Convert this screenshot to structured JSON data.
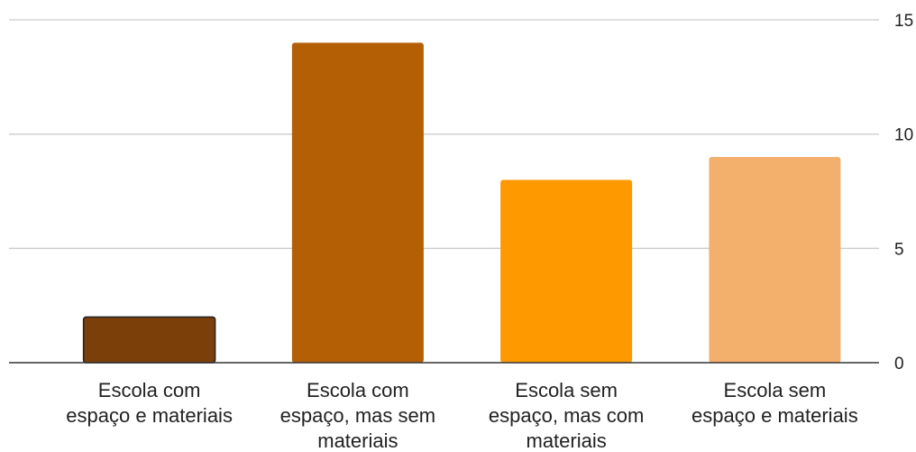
{
  "chart_data": {
    "type": "bar",
    "categories": [
      [
        "Escola com",
        "espaço e materiais"
      ],
      [
        "Escola com",
        "espaço, mas sem",
        "materiais"
      ],
      [
        "Escola sem",
        "espaço, mas com",
        "materiais"
      ],
      [
        "Escola sem",
        "espaço e materiais"
      ]
    ],
    "values": [
      2,
      14,
      8,
      9
    ],
    "colors": [
      "#7b3f0a",
      "#b45f06",
      "#ff9900",
      "#f2b06c"
    ],
    "ylim": [
      0,
      15
    ],
    "yticks": [
      "0",
      "5",
      "10",
      "15"
    ],
    "y_axis_side": "right",
    "grid": true,
    "legend": "none",
    "title": "",
    "xlabel": "",
    "ylabel": ""
  }
}
